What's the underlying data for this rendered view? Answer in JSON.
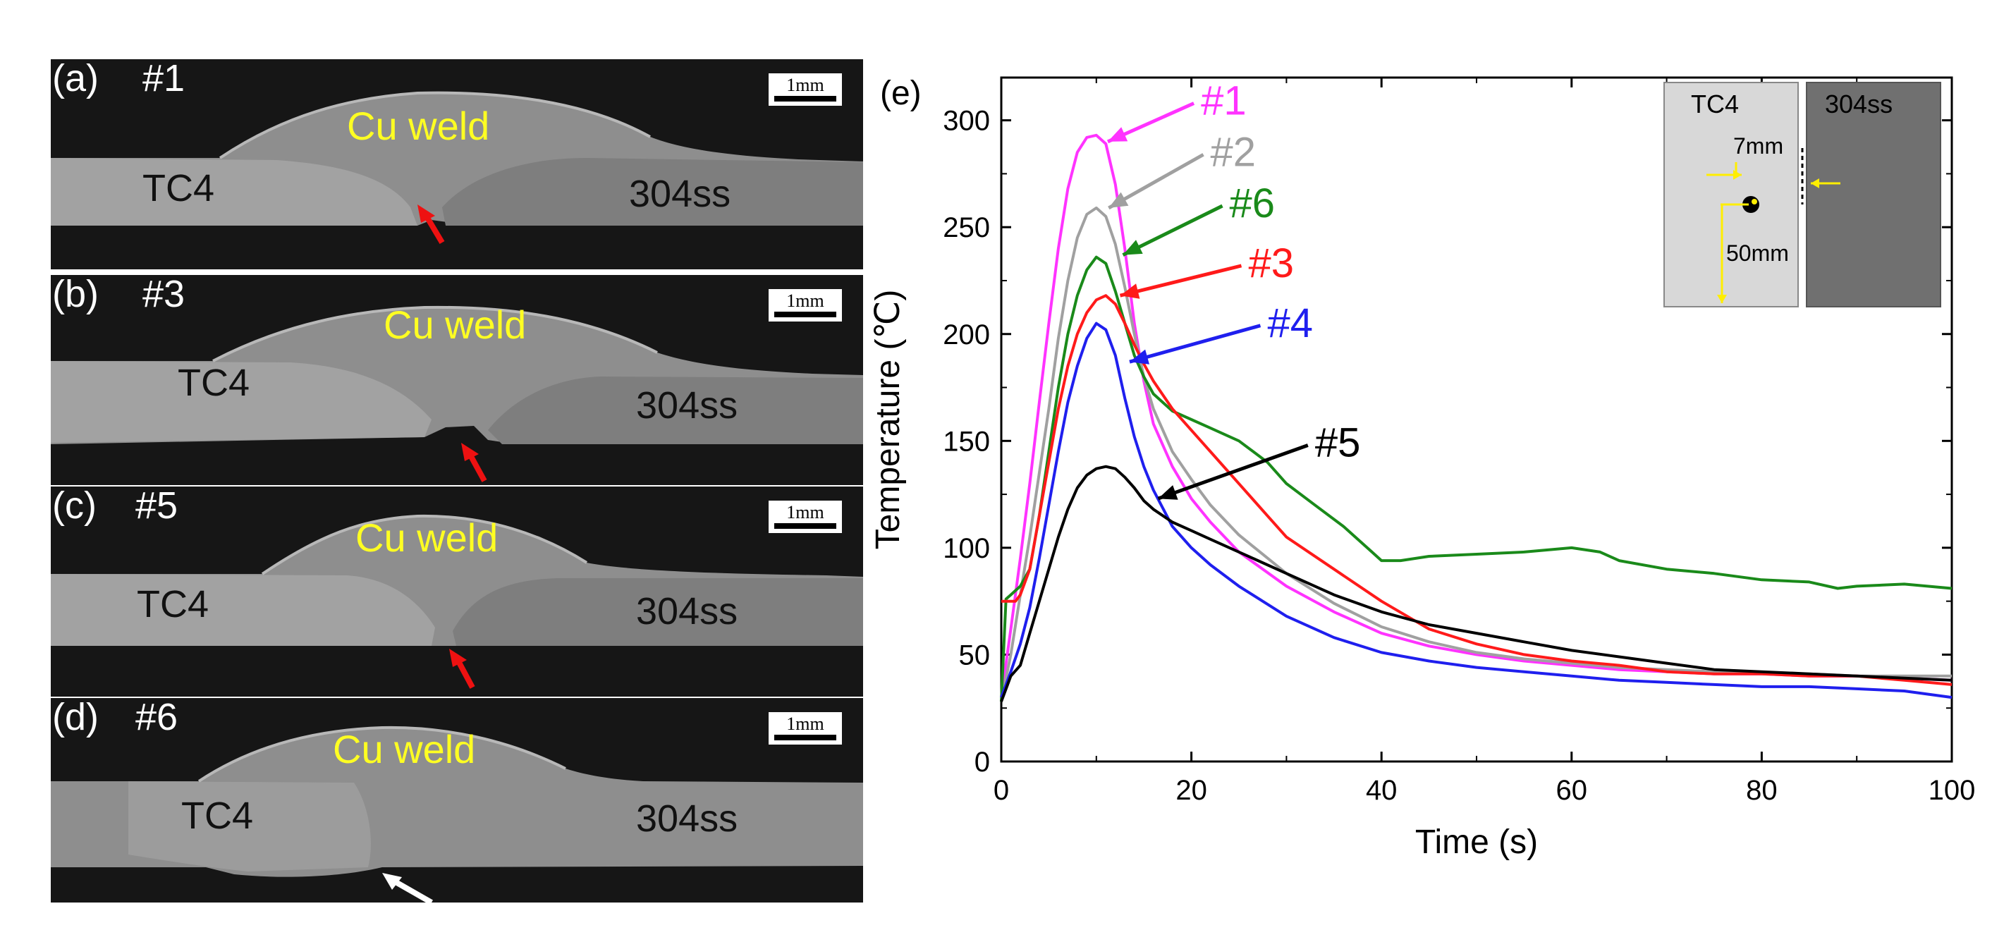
{
  "panels": [
    {
      "letter": "(a)",
      "sample": "#1",
      "weld": "Cu weld",
      "left": "TC4",
      "right": "304ss",
      "scale": "1mm"
    },
    {
      "letter": "(b)",
      "sample": "#3",
      "weld": "Cu weld",
      "left": "TC4",
      "right": "304ss",
      "scale": "1mm"
    },
    {
      "letter": "(c)",
      "sample": "#5",
      "weld": "Cu weld",
      "left": "TC4",
      "right": "304ss",
      "scale": "1mm"
    },
    {
      "letter": "(d)",
      "sample": "#6",
      "weld": "Cu weld",
      "left": "TC4",
      "right": "304ss",
      "scale": "1mm"
    }
  ],
  "colors": {
    "weld_label": "#ffff22",
    "red_arrow": "#ee1111",
    "white_arrow": "#ffffff"
  },
  "chart_data": {
    "type": "line",
    "panel_label": "(e)",
    "xlabel": "Time (s)",
    "ylabel": "Temperature (℃)",
    "xlim": [
      0,
      100
    ],
    "ylim": [
      0,
      320
    ],
    "xticks": [
      0,
      20,
      40,
      60,
      80,
      100
    ],
    "yticks": [
      0,
      50,
      100,
      150,
      200,
      250,
      300
    ],
    "series": [
      {
        "name": "#1",
        "color": "#ff33ff",
        "label_at": [
          21,
          304
        ],
        "arrow_to": [
          11.2,
          290
        ],
        "x": [
          0,
          1,
          2,
          3,
          4,
          5,
          6,
          7,
          8,
          9,
          10,
          11,
          12,
          13,
          14,
          15,
          16,
          18,
          20,
          22,
          25,
          30,
          35,
          40,
          45,
          50,
          55,
          60,
          65,
          70,
          75,
          80,
          85,
          90,
          95,
          100
        ],
        "y": [
          30,
          62,
          95,
          130,
          168,
          205,
          240,
          268,
          285,
          292,
          293,
          289,
          270,
          240,
          205,
          178,
          158,
          138,
          123,
          112,
          98,
          82,
          70,
          60,
          54,
          50,
          47,
          45,
          43,
          42,
          41,
          41,
          40,
          40,
          39,
          38
        ]
      },
      {
        "name": "#2",
        "color": "#a0a0a0",
        "label_at": [
          22,
          280
        ],
        "arrow_to": [
          11.3,
          259
        ],
        "x": [
          0,
          1,
          2,
          3,
          4,
          5,
          6,
          7,
          8,
          9,
          10,
          11,
          12,
          13,
          14,
          15,
          16,
          18,
          20,
          22,
          25,
          30,
          35,
          40,
          45,
          50,
          55,
          60,
          65,
          70,
          75,
          80,
          85,
          90,
          95,
          100
        ],
        "y": [
          28,
          50,
          78,
          105,
          135,
          165,
          198,
          225,
          245,
          256,
          259,
          255,
          242,
          222,
          200,
          180,
          165,
          145,
          132,
          120,
          106,
          88,
          74,
          63,
          56,
          51,
          48,
          46,
          44,
          43,
          42,
          41,
          41,
          40,
          40,
          40
        ]
      },
      {
        "name": "#6",
        "color": "#1a8a1a",
        "label_at": [
          24,
          256
        ],
        "arrow_to": [
          12.8,
          237
        ],
        "x": [
          0,
          0.5,
          1,
          1.5,
          2,
          3,
          4,
          5,
          6,
          7,
          8,
          9,
          10,
          11,
          12,
          13,
          14,
          15,
          16,
          18,
          20,
          22,
          25,
          28,
          30,
          33,
          36,
          39,
          40,
          42,
          45,
          50,
          55,
          60,
          63,
          65,
          70,
          75,
          80,
          85,
          88,
          90,
          95,
          100
        ],
        "y": [
          28,
          76,
          78,
          80,
          82,
          90,
          115,
          145,
          175,
          200,
          218,
          230,
          236,
          233,
          220,
          205,
          190,
          180,
          172,
          164,
          160,
          156,
          150,
          140,
          130,
          120,
          110,
          98,
          94,
          94,
          96,
          97,
          98,
          100,
          98,
          94,
          90,
          88,
          85,
          84,
          81,
          82,
          83,
          81
        ]
      },
      {
        "name": "#3",
        "color": "#ff1a1a",
        "label_at": [
          26,
          228
        ],
        "arrow_to": [
          12.5,
          218
        ],
        "x": [
          0,
          1,
          1.5,
          2,
          3,
          4,
          5,
          6,
          7,
          8,
          9,
          10,
          11,
          12,
          13,
          14,
          15,
          16,
          18,
          20,
          22,
          25,
          28,
          30,
          35,
          40,
          45,
          50,
          55,
          60,
          65,
          70,
          75,
          80,
          85,
          90,
          95,
          100
        ],
        "y": [
          75,
          75,
          75,
          78,
          90,
          115,
          140,
          165,
          185,
          200,
          210,
          216,
          218,
          214,
          205,
          195,
          186,
          178,
          165,
          155,
          145,
          130,
          115,
          105,
          90,
          75,
          62,
          55,
          50,
          47,
          45,
          42,
          41,
          41,
          40,
          40,
          38,
          36
        ]
      },
      {
        "name": "#4",
        "color": "#1f1fee",
        "label_at": [
          28,
          200
        ],
        "arrow_to": [
          13.5,
          187
        ],
        "x": [
          0,
          1,
          2,
          3,
          4,
          5,
          6,
          7,
          8,
          9,
          10,
          11,
          12,
          13,
          14,
          15,
          16,
          18,
          20,
          22,
          25,
          30,
          35,
          40,
          45,
          50,
          55,
          60,
          65,
          70,
          75,
          80,
          85,
          90,
          95,
          100
        ],
        "y": [
          30,
          42,
          55,
          72,
          95,
          120,
          145,
          168,
          185,
          198,
          205,
          202,
          190,
          170,
          152,
          138,
          127,
          110,
          100,
          92,
          82,
          68,
          58,
          51,
          47,
          44,
          42,
          40,
          38,
          37,
          36,
          35,
          35,
          34,
          33,
          30
        ]
      },
      {
        "name": "#5",
        "color": "#000000",
        "label_at": [
          33,
          144
        ],
        "arrow_to": [
          16.5,
          123
        ],
        "x": [
          0,
          1,
          2,
          3,
          4,
          5,
          6,
          7,
          8,
          9,
          10,
          11,
          12,
          13,
          14,
          15,
          16,
          18,
          20,
          22,
          25,
          30,
          35,
          40,
          45,
          50,
          55,
          60,
          65,
          70,
          75,
          80,
          85,
          90,
          95,
          100
        ],
        "y": [
          28,
          40,
          45,
          60,
          75,
          90,
          105,
          118,
          128,
          134,
          137,
          138,
          137,
          133,
          128,
          122,
          118,
          112,
          108,
          104,
          98,
          88,
          78,
          70,
          64,
          60,
          56,
          52,
          49,
          46,
          43,
          42,
          41,
          40,
          39,
          38
        ]
      }
    ],
    "inset": {
      "left_label": "TC4",
      "right_label": "304ss",
      "dim1": "7mm",
      "dim2": "50mm"
    }
  }
}
